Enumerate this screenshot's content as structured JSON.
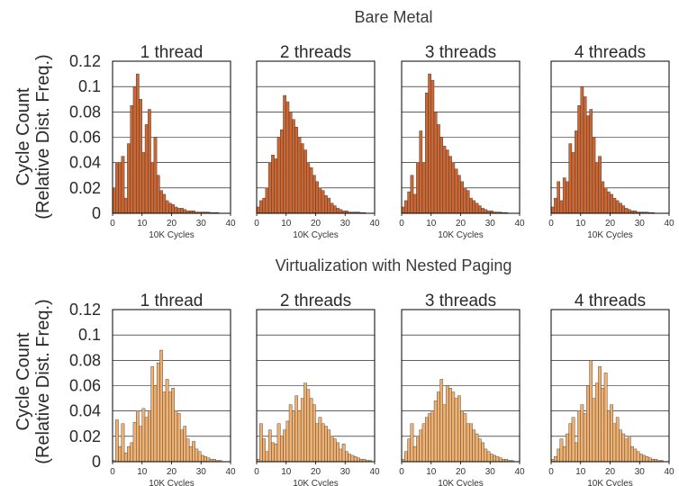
{
  "figure": {
    "sections": [
      {
        "title": "Bare Metal",
        "ylabel_line1": "Cycle Count",
        "ylabel_line2": "(Relative Dist. Freq.)"
      },
      {
        "title": "Virtualization with Nested Paging",
        "ylabel_line1": "Cycle Count",
        "ylabel_line2": "(Relative Dist. Freq.)"
      }
    ],
    "colors": {
      "bare_metal": "#cc6633",
      "nested_paging": "#f0b070",
      "bar_outline": "#333333",
      "grid": "#000000"
    }
  },
  "chart_data": [
    {
      "type": "bar",
      "section": "Bare Metal",
      "title": "1 thread",
      "xlabel": "10K Cycles",
      "ylabel": "",
      "x_bin_width": 1,
      "xlim": [
        0,
        40
      ],
      "ylim": [
        0,
        0.12
      ],
      "xticks": [
        0,
        10,
        20,
        30,
        40
      ],
      "yticks": [
        0,
        0.02,
        0.04,
        0.06,
        0.08,
        0.1,
        0.12
      ],
      "yticks_shown": true,
      "grid": "horizontal",
      "x": [
        0,
        1,
        2,
        3,
        4,
        5,
        6,
        7,
        8,
        9,
        10,
        11,
        12,
        13,
        14,
        15,
        16,
        17,
        18,
        19,
        20,
        21,
        22,
        23,
        24,
        25,
        26,
        27,
        28,
        29,
        30,
        31,
        32,
        33,
        34,
        35,
        36,
        37,
        38,
        39
      ],
      "values": [
        0.02,
        0.04,
        0.04,
        0.045,
        0.012,
        0.055,
        0.085,
        0.1,
        0.11,
        0.09,
        0.048,
        0.07,
        0.082,
        0.04,
        0.06,
        0.03,
        0.018,
        0.015,
        0.01,
        0.008,
        0.007,
        0.005,
        0.004,
        0.004,
        0.003,
        0.002,
        0.002,
        0.002,
        0.001,
        0.001,
        0.001,
        0.001,
        0.001,
        0.0005,
        0.0005,
        0.0005,
        0,
        0,
        0,
        0
      ]
    },
    {
      "type": "bar",
      "section": "Bare Metal",
      "title": "2 threads",
      "xlabel": "10K Cycles",
      "ylabel": "",
      "x_bin_width": 1,
      "xlim": [
        0,
        40
      ],
      "ylim": [
        0,
        0.12
      ],
      "xticks": [
        0,
        10,
        20,
        30,
        40
      ],
      "yticks": [
        0,
        0.02,
        0.04,
        0.06,
        0.08,
        0.1,
        0.12
      ],
      "yticks_shown": false,
      "grid": "horizontal",
      "x": [
        0,
        1,
        2,
        3,
        4,
        5,
        6,
        7,
        8,
        9,
        10,
        11,
        12,
        13,
        14,
        15,
        16,
        17,
        18,
        19,
        20,
        21,
        22,
        23,
        24,
        25,
        26,
        27,
        28,
        29,
        30,
        31,
        32,
        33,
        34,
        35,
        36,
        37,
        38,
        39
      ],
      "values": [
        0.005,
        0.01,
        0.012,
        0.02,
        0.04,
        0.046,
        0.043,
        0.06,
        0.066,
        0.093,
        0.088,
        0.08,
        0.074,
        0.068,
        0.06,
        0.055,
        0.05,
        0.04,
        0.036,
        0.03,
        0.025,
        0.02,
        0.018,
        0.014,
        0.012,
        0.008,
        0.006,
        0.004,
        0.003,
        0.002,
        0.002,
        0.001,
        0.001,
        0.001,
        0.001,
        0.0005,
        0.0005,
        0,
        0,
        0
      ]
    },
    {
      "type": "bar",
      "section": "Bare Metal",
      "title": "3 threads",
      "xlabel": "10K Cycles",
      "ylabel": "",
      "x_bin_width": 1,
      "xlim": [
        0,
        40
      ],
      "ylim": [
        0,
        0.12
      ],
      "xticks": [
        0,
        10,
        20,
        30,
        40
      ],
      "yticks": [
        0,
        0.02,
        0.04,
        0.06,
        0.08,
        0.1,
        0.12
      ],
      "yticks_shown": false,
      "grid": "horizontal",
      "x": [
        0,
        1,
        2,
        3,
        4,
        5,
        6,
        7,
        8,
        9,
        10,
        11,
        12,
        13,
        14,
        15,
        16,
        17,
        18,
        19,
        20,
        21,
        22,
        23,
        24,
        25,
        26,
        27,
        28,
        29,
        30,
        31,
        32,
        33,
        34,
        35,
        36,
        37,
        38,
        39
      ],
      "values": [
        0.005,
        0.01,
        0.017,
        0.03,
        0.015,
        0.04,
        0.065,
        0.04,
        0.095,
        0.11,
        0.105,
        0.08,
        0.07,
        0.06,
        0.053,
        0.05,
        0.045,
        0.04,
        0.035,
        0.03,
        0.025,
        0.02,
        0.018,
        0.012,
        0.01,
        0.008,
        0.006,
        0.004,
        0.003,
        0.002,
        0.002,
        0.001,
        0.001,
        0.001,
        0.0005,
        0.0005,
        0,
        0,
        0,
        0
      ]
    },
    {
      "type": "bar",
      "section": "Bare Metal",
      "title": "4 threads",
      "xlabel": "10K Cycles",
      "ylabel": "",
      "x_bin_width": 1,
      "xlim": [
        0,
        40
      ],
      "ylim": [
        0,
        0.12
      ],
      "xticks": [
        0,
        10,
        20,
        30,
        40
      ],
      "yticks": [
        0,
        0.02,
        0.04,
        0.06,
        0.08,
        0.1,
        0.12
      ],
      "yticks_shown": false,
      "grid": "horizontal",
      "x": [
        0,
        1,
        2,
        3,
        4,
        5,
        6,
        7,
        8,
        9,
        10,
        11,
        12,
        13,
        14,
        15,
        16,
        17,
        18,
        19,
        20,
        21,
        22,
        23,
        24,
        25,
        26,
        27,
        28,
        29,
        30,
        31,
        32,
        33,
        34,
        35,
        36,
        37,
        38,
        39
      ],
      "values": [
        0.005,
        0.012,
        0.025,
        0.01,
        0.028,
        0.025,
        0.055,
        0.048,
        0.065,
        0.085,
        0.1,
        0.092,
        0.077,
        0.082,
        0.06,
        0.04,
        0.045,
        0.025,
        0.02,
        0.017,
        0.015,
        0.012,
        0.01,
        0.008,
        0.006,
        0.004,
        0.003,
        0.002,
        0.002,
        0.001,
        0.001,
        0.001,
        0.001,
        0.0005,
        0.0005,
        0,
        0,
        0,
        0,
        0
      ]
    },
    {
      "type": "bar",
      "section": "Virtualization with Nested Paging",
      "title": "1 thread",
      "xlabel": "10K Cycles",
      "ylabel": "",
      "x_bin_width": 1,
      "xlim": [
        0,
        40
      ],
      "ylim": [
        0,
        0.12
      ],
      "xticks": [
        0,
        10,
        20,
        30,
        40
      ],
      "yticks": [
        0,
        0.02,
        0.04,
        0.06,
        0.08,
        0.1,
        0.12
      ],
      "yticks_shown": true,
      "grid": "horizontal",
      "x": [
        0,
        1,
        2,
        3,
        4,
        5,
        6,
        7,
        8,
        9,
        10,
        11,
        12,
        13,
        14,
        15,
        16,
        17,
        18,
        19,
        20,
        21,
        22,
        23,
        24,
        25,
        26,
        27,
        28,
        29,
        30,
        31,
        32,
        33,
        34,
        35,
        36,
        37,
        38,
        39
      ],
      "values": [
        0.001,
        0.033,
        0.012,
        0.03,
        0.007,
        0.012,
        0.015,
        0.031,
        0.04,
        0.028,
        0.042,
        0.035,
        0.04,
        0.075,
        0.06,
        0.078,
        0.088,
        0.055,
        0.065,
        0.055,
        0.058,
        0.04,
        0.038,
        0.025,
        0.028,
        0.018,
        0.012,
        0.016,
        0.01,
        0.008,
        0.005,
        0.004,
        0.003,
        0.002,
        0.002,
        0.001,
        0.001,
        0,
        0,
        0
      ]
    },
    {
      "type": "bar",
      "section": "Virtualization with Nested Paging",
      "title": "2 threads",
      "xlabel": "10K Cycles",
      "ylabel": "",
      "x_bin_width": 1,
      "xlim": [
        0,
        40
      ],
      "ylim": [
        0,
        0.12
      ],
      "xticks": [
        0,
        10,
        20,
        30,
        40
      ],
      "yticks": [
        0,
        0.02,
        0.04,
        0.06,
        0.08,
        0.1,
        0.12
      ],
      "yticks_shown": false,
      "grid": "horizontal",
      "x": [
        0,
        1,
        2,
        3,
        4,
        5,
        6,
        7,
        8,
        9,
        10,
        11,
        12,
        13,
        14,
        15,
        16,
        17,
        18,
        19,
        20,
        21,
        22,
        23,
        24,
        25,
        26,
        27,
        28,
        29,
        30,
        31,
        32,
        33,
        34,
        35,
        36,
        37,
        38,
        39
      ],
      "values": [
        0.002,
        0.03,
        0.018,
        0.008,
        0.025,
        0.015,
        0.014,
        0.03,
        0.02,
        0.025,
        0.032,
        0.045,
        0.04,
        0.052,
        0.04,
        0.05,
        0.062,
        0.057,
        0.05,
        0.045,
        0.03,
        0.035,
        0.03,
        0.028,
        0.025,
        0.02,
        0.018,
        0.015,
        0.01,
        0.014,
        0.008,
        0.006,
        0.005,
        0.004,
        0.003,
        0.002,
        0.002,
        0.001,
        0.001,
        0
      ]
    },
    {
      "type": "bar",
      "section": "Virtualization with Nested Paging",
      "title": "3 threads",
      "xlabel": "10K Cycles",
      "ylabel": "",
      "x_bin_width": 1,
      "xlim": [
        0,
        40
      ],
      "ylim": [
        0,
        0.12
      ],
      "xticks": [
        0,
        10,
        20,
        30,
        40
      ],
      "yticks": [
        0,
        0.02,
        0.04,
        0.06,
        0.08,
        0.1,
        0.12
      ],
      "yticks_shown": false,
      "grid": "horizontal",
      "x": [
        0,
        1,
        2,
        3,
        4,
        5,
        6,
        7,
        8,
        9,
        10,
        11,
        12,
        13,
        14,
        15,
        16,
        17,
        18,
        19,
        20,
        21,
        22,
        23,
        24,
        25,
        26,
        27,
        28,
        29,
        30,
        31,
        32,
        33,
        34,
        35,
        36,
        37,
        38,
        39
      ],
      "values": [
        0.002,
        0.008,
        0.018,
        0.03,
        0.012,
        0.02,
        0.025,
        0.03,
        0.035,
        0.038,
        0.04,
        0.048,
        0.055,
        0.065,
        0.045,
        0.06,
        0.058,
        0.055,
        0.05,
        0.052,
        0.04,
        0.038,
        0.03,
        0.03,
        0.025,
        0.022,
        0.018,
        0.015,
        0.01,
        0.008,
        0.006,
        0.005,
        0.004,
        0.003,
        0.002,
        0.002,
        0.001,
        0.001,
        0,
        0
      ]
    },
    {
      "type": "bar",
      "section": "Virtualization with Nested Paging",
      "title": "4 threads",
      "xlabel": "10K Cycles",
      "ylabel": "",
      "x_bin_width": 1,
      "xlim": [
        0,
        40
      ],
      "ylim": [
        0,
        0.12
      ],
      "xticks": [
        0,
        10,
        20,
        30,
        40
      ],
      "yticks": [
        0,
        0.02,
        0.04,
        0.06,
        0.08,
        0.1,
        0.12
      ],
      "yticks_shown": false,
      "grid": "horizontal",
      "x": [
        0,
        1,
        2,
        3,
        4,
        5,
        6,
        7,
        8,
        9,
        10,
        11,
        12,
        13,
        14,
        15,
        16,
        17,
        18,
        19,
        20,
        21,
        22,
        23,
        24,
        25,
        26,
        27,
        28,
        29,
        30,
        31,
        32,
        33,
        34,
        35,
        36,
        37,
        38,
        39
      ],
      "values": [
        0.002,
        0.004,
        0.01,
        0.018,
        0.012,
        0.022,
        0.03,
        0.035,
        0.015,
        0.04,
        0.045,
        0.038,
        0.06,
        0.08,
        0.05,
        0.062,
        0.075,
        0.058,
        0.07,
        0.04,
        0.045,
        0.03,
        0.035,
        0.025,
        0.022,
        0.018,
        0.02,
        0.012,
        0.01,
        0.008,
        0.006,
        0.005,
        0.004,
        0.003,
        0.002,
        0.002,
        0.001,
        0.001,
        0,
        0
      ]
    }
  ]
}
